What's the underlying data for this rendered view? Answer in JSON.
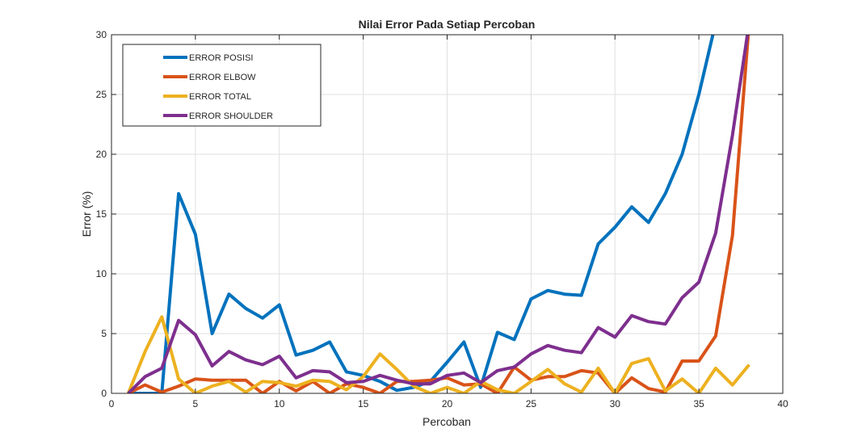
{
  "chart_data": {
    "type": "line",
    "title": "Nilai Error Pada Setiap Percoban",
    "xlabel": "Percoban",
    "ylabel": "Error (%)",
    "xlim": [
      0,
      40
    ],
    "ylim": [
      0,
      30
    ],
    "xticks": [
      0,
      5,
      10,
      15,
      20,
      25,
      30,
      35,
      40
    ],
    "yticks": [
      0,
      5,
      10,
      15,
      20,
      25,
      30
    ],
    "grid": true,
    "legend_position": "top-left",
    "x": [
      1,
      2,
      3,
      4,
      5,
      6,
      7,
      8,
      9,
      10,
      11,
      12,
      13,
      14,
      15,
      16,
      17,
      18,
      19,
      20,
      21,
      22,
      23,
      24,
      25,
      26,
      27,
      28,
      29,
      30,
      31,
      32,
      33,
      34,
      35,
      36,
      37,
      38
    ],
    "series": [
      {
        "name": "ERROR POSISI",
        "color": "#0072BD",
        "values": [
          0,
          0,
          0,
          16.7,
          13.3,
          5.0,
          8.3,
          7.1,
          6.3,
          7.4,
          3.2,
          3.6,
          4.3,
          1.8,
          1.5,
          1.0,
          0.25,
          0.5,
          1.0,
          2.6,
          4.3,
          0.5,
          5.1,
          4.5,
          7.9,
          8.6,
          8.3,
          8.2,
          12.5,
          13.9,
          15.6,
          14.3,
          16.7,
          20.0,
          25.0,
          31.0,
          31.0,
          31.0
        ]
      },
      {
        "name": "ERROR ELBOW",
        "color": "#D95319",
        "values": [
          0,
          0.7,
          0.1,
          0.6,
          1.2,
          1.1,
          1.1,
          1.1,
          0,
          1.0,
          0.2,
          1.0,
          0,
          0.8,
          0.5,
          0,
          1.0,
          1.0,
          1.1,
          1.3,
          0.7,
          0.8,
          0,
          2.2,
          1.1,
          1.4,
          1.4,
          1.9,
          1.7,
          0,
          1.3,
          0.4,
          0.1,
          2.7,
          2.7,
          4.8,
          13.2,
          31.0
        ]
      },
      {
        "name": "ERROR TOTAL",
        "color": "#EDB120",
        "values": [
          0,
          3.5,
          6.4,
          1.2,
          0,
          0.6,
          1.0,
          0.1,
          1.0,
          0.9,
          0.6,
          1.1,
          1.0,
          0.3,
          1.4,
          3.3,
          2.0,
          0.6,
          0,
          0.5,
          0,
          1.0,
          0.3,
          0,
          1.0,
          2.0,
          0.8,
          0.1,
          2.1,
          0,
          2.5,
          2.9,
          0.2,
          1.2,
          0,
          2.1,
          0.7,
          2.4
        ]
      },
      {
        "name": "ERROR SHOULDER",
        "color": "#7E2F8E",
        "values": [
          0,
          1.4,
          2.1,
          6.1,
          4.9,
          2.3,
          3.5,
          2.8,
          2.4,
          3.1,
          1.3,
          1.9,
          1.8,
          0.9,
          1.0,
          1.5,
          1.1,
          0.8,
          0.8,
          1.5,
          1.7,
          0.9,
          1.9,
          2.2,
          3.3,
          4.0,
          3.6,
          3.4,
          5.5,
          4.7,
          6.5,
          6.0,
          5.8,
          8.0,
          9.3,
          13.4,
          21.6,
          31.0
        ]
      }
    ]
  }
}
